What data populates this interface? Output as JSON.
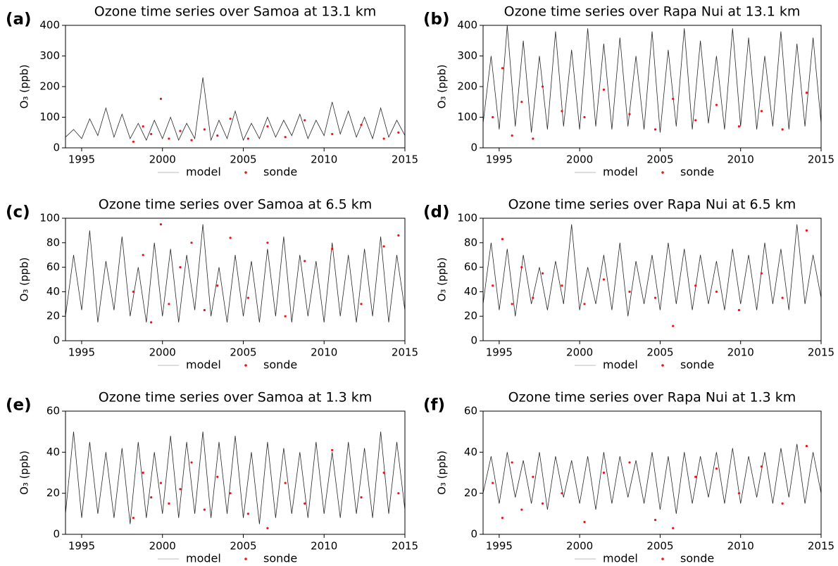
{
  "chart_data": [
    {
      "type": "line",
      "panel_label": "(a)",
      "title": "Ozone time series over Samoa at 13.1 km",
      "y_label": "O₃ (ppb)",
      "xlim": [
        1994,
        2015
      ],
      "xticks": [
        1995,
        2000,
        2005,
        2010,
        2015
      ],
      "ylim": [
        0,
        400
      ],
      "yticks": [
        0,
        100,
        200,
        300,
        400
      ],
      "series": [
        {
          "name": "model",
          "type": "line",
          "color": "#000000",
          "x": [
            1994,
            1994.5,
            1995,
            1995.5,
            1996,
            1996.5,
            1997,
            1997.5,
            1998,
            1998.5,
            1999,
            1999.5,
            2000,
            2000.5,
            2001,
            2001.5,
            2002,
            2002.5,
            2003,
            2003.5,
            2004,
            2004.5,
            2005,
            2005.5,
            2006,
            2006.5,
            2007,
            2007.5,
            2008,
            2008.5,
            2009,
            2009.5,
            2010,
            2010.5,
            2011,
            2011.5,
            2012,
            2012.5,
            2013,
            2013.5,
            2014,
            2014.5,
            2015
          ],
          "values": [
            35,
            60,
            30,
            95,
            40,
            130,
            35,
            110,
            30,
            80,
            25,
            90,
            30,
            100,
            25,
            80,
            30,
            230,
            25,
            90,
            30,
            120,
            25,
            80,
            30,
            100,
            35,
            90,
            40,
            110,
            30,
            90,
            40,
            150,
            45,
            120,
            35,
            100,
            30,
            130,
            35,
            90,
            40
          ]
        },
        {
          "name": "sonde",
          "type": "scatter",
          "color": "#e8141b",
          "x": [
            1998.2,
            1998.8,
            1999.3,
            1999.9,
            2000.4,
            2001.1,
            2001.8,
            2002.6,
            2003.4,
            2004.2,
            2005.3,
            2006.5,
            2007.6,
            2008.8,
            2010.5,
            2012.3,
            2013.7,
            2014.6
          ],
          "values": [
            20,
            70,
            45,
            160,
            30,
            55,
            25,
            60,
            40,
            95,
            30,
            70,
            35,
            90,
            45,
            75,
            30,
            50
          ]
        }
      ]
    },
    {
      "type": "line",
      "panel_label": "(b)",
      "title": "Ozone time series over Rapa Nui at 13.1 km",
      "y_label": "O₃ (ppb)",
      "xlim": [
        1994,
        2015
      ],
      "xticks": [
        1995,
        2000,
        2005,
        2010,
        2015
      ],
      "ylim": [
        0,
        400
      ],
      "yticks": [
        0,
        100,
        200,
        300,
        400
      ],
      "series": [
        {
          "name": "model",
          "type": "line",
          "color": "#000000",
          "x": [
            1994,
            1994.5,
            1995,
            1995.5,
            1996,
            1996.5,
            1997,
            1997.5,
            1998,
            1998.5,
            1999,
            1999.5,
            2000,
            2000.5,
            2001,
            2001.5,
            2002,
            2002.5,
            2003,
            2003.5,
            2004,
            2004.5,
            2005,
            2005.5,
            2006,
            2006.5,
            2007,
            2007.5,
            2008,
            2008.5,
            2009,
            2009.5,
            2010,
            2010.5,
            2011,
            2011.5,
            2012,
            2012.5,
            2013,
            2013.5,
            2014,
            2014.5,
            2015
          ],
          "values": [
            80,
            300,
            60,
            400,
            70,
            350,
            50,
            300,
            60,
            380,
            70,
            320,
            60,
            390,
            70,
            340,
            60,
            360,
            70,
            300,
            60,
            380,
            50,
            320,
            70,
            390,
            60,
            350,
            80,
            300,
            60,
            390,
            70,
            360,
            60,
            300,
            70,
            380,
            60,
            340,
            70,
            360,
            80
          ]
        },
        {
          "name": "sonde",
          "type": "scatter",
          "color": "#e8141b",
          "x": [
            1994.6,
            1995.2,
            1995.8,
            1996.4,
            1997.1,
            1997.7,
            1998.9,
            2000.3,
            2001.5,
            2003.1,
            2004.7,
            2005.8,
            2007.2,
            2008.5,
            2009.9,
            2011.3,
            2012.6,
            2014.1
          ],
          "values": [
            100,
            260,
            40,
            150,
            30,
            200,
            120,
            100,
            190,
            110,
            60,
            160,
            90,
            140,
            70,
            120,
            60,
            180
          ]
        }
      ]
    },
    {
      "type": "line",
      "panel_label": "(c)",
      "title": "Ozone time series over Samoa at 6.5 km",
      "y_label": "O₃ (ppb)",
      "xlim": [
        1994,
        2015
      ],
      "xticks": [
        1995,
        2000,
        2005,
        2010,
        2015
      ],
      "ylim": [
        0,
        100
      ],
      "yticks": [
        0,
        20,
        40,
        60,
        80,
        100
      ],
      "series": [
        {
          "name": "model",
          "type": "line",
          "color": "#000000",
          "x": [
            1994,
            1994.5,
            1995,
            1995.5,
            1996,
            1996.5,
            1997,
            1997.5,
            1998,
            1998.5,
            1999,
            1999.5,
            2000,
            2000.5,
            2001,
            2001.5,
            2002,
            2002.5,
            2003,
            2003.5,
            2004,
            2004.5,
            2005,
            2005.5,
            2006,
            2006.5,
            2007,
            2007.5,
            2008,
            2008.5,
            2009,
            2009.5,
            2010,
            2010.5,
            2011,
            2011.5,
            2012,
            2012.5,
            2013,
            2013.5,
            2014,
            2014.5,
            2015
          ],
          "values": [
            20,
            70,
            25,
            90,
            15,
            65,
            25,
            85,
            20,
            60,
            15,
            80,
            20,
            75,
            15,
            70,
            25,
            95,
            20,
            60,
            15,
            70,
            20,
            65,
            15,
            75,
            20,
            85,
            15,
            70,
            20,
            65,
            15,
            80,
            20,
            70,
            15,
            75,
            20,
            85,
            15,
            70,
            25
          ]
        },
        {
          "name": "sonde",
          "type": "scatter",
          "color": "#e8141b",
          "x": [
            1998.2,
            1998.8,
            1999.3,
            1999.9,
            2000.4,
            2001.1,
            2001.8,
            2002.6,
            2003.4,
            2004.2,
            2005.3,
            2006.5,
            2007.6,
            2008.8,
            2010.5,
            2012.3,
            2013.7,
            2014.6
          ],
          "values": [
            40,
            70,
            15,
            95,
            30,
            60,
            80,
            25,
            45,
            84,
            35,
            80,
            20,
            65,
            75,
            30,
            77,
            86
          ]
        }
      ]
    },
    {
      "type": "line",
      "panel_label": "(d)",
      "title": "Ozone time series over Rapa Nui at 6.5 km",
      "y_label": "O₃ (ppb)",
      "xlim": [
        1994,
        2015
      ],
      "xticks": [
        1995,
        2000,
        2005,
        2010,
        2015
      ],
      "ylim": [
        0,
        100
      ],
      "yticks": [
        0,
        20,
        40,
        60,
        80,
        100
      ],
      "series": [
        {
          "name": "model",
          "type": "line",
          "color": "#000000",
          "x": [
            1994,
            1994.5,
            1995,
            1995.5,
            1996,
            1996.5,
            1997,
            1997.5,
            1998,
            1998.5,
            1999,
            1999.5,
            2000,
            2000.5,
            2001,
            2001.5,
            2002,
            2002.5,
            2003,
            2003.5,
            2004,
            2004.5,
            2005,
            2005.5,
            2006,
            2006.5,
            2007,
            2007.5,
            2008,
            2008.5,
            2009,
            2009.5,
            2010,
            2010.5,
            2011,
            2011.5,
            2012,
            2012.5,
            2013,
            2013.5,
            2014,
            2014.5,
            2015
          ],
          "values": [
            30,
            80,
            25,
            75,
            20,
            70,
            30,
            60,
            25,
            65,
            30,
            95,
            25,
            60,
            30,
            70,
            25,
            80,
            20,
            65,
            30,
            70,
            25,
            80,
            30,
            75,
            25,
            70,
            30,
            65,
            25,
            75,
            30,
            70,
            25,
            80,
            30,
            75,
            25,
            95,
            30,
            70,
            35
          ]
        },
        {
          "name": "sonde",
          "type": "scatter",
          "color": "#e8141b",
          "x": [
            1994.6,
            1995.2,
            1995.8,
            1996.4,
            1997.1,
            1997.7,
            1998.9,
            2000.3,
            2001.5,
            2003.1,
            2004.7,
            2005.8,
            2007.2,
            2008.5,
            2009.9,
            2011.3,
            2012.6,
            2014.1
          ],
          "values": [
            45,
            83,
            30,
            60,
            35,
            55,
            45,
            30,
            50,
            40,
            35,
            12,
            45,
            40,
            25,
            55,
            35,
            90
          ]
        }
      ]
    },
    {
      "type": "line",
      "panel_label": "(e)",
      "title": "Ozone time series over Samoa at 1.3 km",
      "y_label": "O₃ (ppb)",
      "xlim": [
        1994,
        2015
      ],
      "xticks": [
        1995,
        2000,
        2005,
        2010,
        2015
      ],
      "ylim": [
        0,
        60
      ],
      "yticks": [
        0,
        20,
        40,
        60
      ],
      "series": [
        {
          "name": "model",
          "type": "line",
          "color": "#000000",
          "x": [
            1994,
            1994.5,
            1995,
            1995.5,
            1996,
            1996.5,
            1997,
            1997.5,
            1998,
            1998.5,
            1999,
            1999.5,
            2000,
            2000.5,
            2001,
            2001.5,
            2002,
            2002.5,
            2003,
            2003.5,
            2004,
            2004.5,
            2005,
            2005.5,
            2006,
            2006.5,
            2007,
            2007.5,
            2008,
            2008.5,
            2009,
            2009.5,
            2010,
            2010.5,
            2011,
            2011.5,
            2012,
            2012.5,
            2013,
            2013.5,
            2014,
            2014.5,
            2015
          ],
          "values": [
            10,
            50,
            8,
            45,
            10,
            40,
            8,
            42,
            5,
            45,
            8,
            40,
            10,
            48,
            8,
            45,
            10,
            50,
            8,
            45,
            10,
            48,
            8,
            40,
            5,
            45,
            8,
            42,
            10,
            40,
            8,
            45,
            10,
            40,
            8,
            45,
            10,
            42,
            8,
            50,
            10,
            45,
            12
          ]
        },
        {
          "name": "sonde",
          "type": "scatter",
          "color": "#e8141b",
          "x": [
            1998.2,
            1998.8,
            1999.3,
            1999.9,
            2000.4,
            2001.1,
            2001.8,
            2002.6,
            2003.4,
            2004.2,
            2005.3,
            2006.5,
            2007.6,
            2008.8,
            2010.5,
            2012.3,
            2013.7,
            2014.6
          ],
          "values": [
            8,
            30,
            18,
            25,
            15,
            22,
            35,
            12,
            28,
            20,
            10,
            3,
            25,
            15,
            41,
            18,
            30,
            20
          ]
        }
      ]
    },
    {
      "type": "line",
      "panel_label": "(f)",
      "title": "Ozone time series over Rapa Nui at 1.3 km",
      "y_label": "O₃ (ppb)",
      "xlim": [
        1994,
        2015
      ],
      "xticks": [
        1995,
        2000,
        2005,
        2010,
        2015
      ],
      "ylim": [
        0,
        60
      ],
      "yticks": [
        0,
        20,
        40,
        60
      ],
      "series": [
        {
          "name": "model",
          "type": "line",
          "color": "#000000",
          "x": [
            1994,
            1994.5,
            1995,
            1995.5,
            1996,
            1996.5,
            1997,
            1997.5,
            1998,
            1998.5,
            1999,
            1999.5,
            2000,
            2000.5,
            2001,
            2001.5,
            2002,
            2002.5,
            2003,
            2003.5,
            2004,
            2004.5,
            2005,
            2005.5,
            2006,
            2006.5,
            2007,
            2007.5,
            2008,
            2008.5,
            2009,
            2009.5,
            2010,
            2010.5,
            2011,
            2011.5,
            2012,
            2012.5,
            2013,
            2013.5,
            2014,
            2014.5,
            2015
          ],
          "values": [
            20,
            38,
            15,
            40,
            18,
            36,
            15,
            40,
            12,
            38,
            18,
            36,
            15,
            38,
            12,
            40,
            15,
            38,
            18,
            36,
            15,
            40,
            12,
            38,
            10,
            40,
            15,
            38,
            18,
            40,
            15,
            42,
            15,
            38,
            18,
            40,
            15,
            42,
            18,
            44,
            15,
            40,
            20
          ]
        },
        {
          "name": "sonde",
          "type": "scatter",
          "color": "#e8141b",
          "x": [
            1994.6,
            1995.2,
            1995.8,
            1996.4,
            1997.1,
            1997.7,
            1998.9,
            2000.3,
            2001.5,
            2003.1,
            2004.7,
            2005.8,
            2007.2,
            2008.5,
            2009.9,
            2011.3,
            2012.6,
            2014.1
          ],
          "values": [
            25,
            8,
            35,
            12,
            28,
            15,
            20,
            6,
            30,
            35,
            7,
            3,
            28,
            32,
            20,
            33,
            15,
            43
          ]
        }
      ]
    }
  ]
}
